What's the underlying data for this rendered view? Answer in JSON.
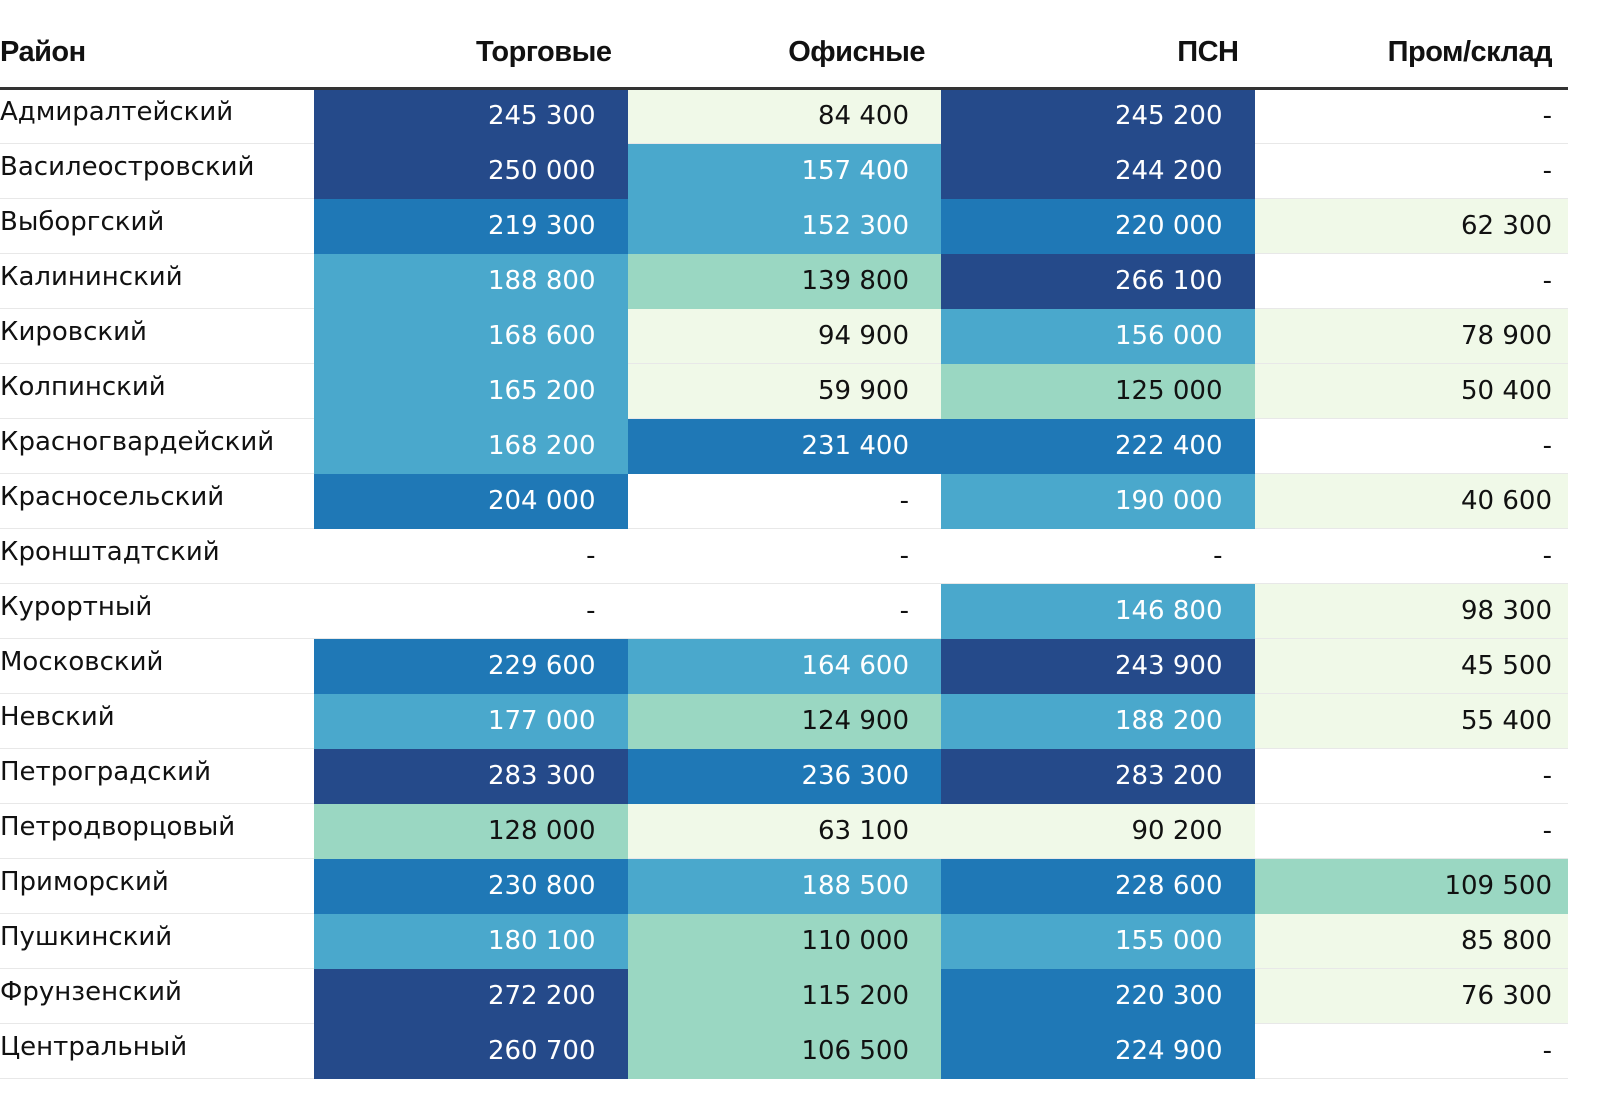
{
  "chart_data": {
    "type": "table",
    "columns": [
      "Район",
      "Торговые",
      "Офисные",
      "ПСН",
      "Пром/склад"
    ],
    "rows": [
      {
        "name": "Адмиралтейский",
        "values": [
          "245 300",
          "84 400",
          "245 200",
          "-"
        ]
      },
      {
        "name": "Василеостровский",
        "values": [
          "250 000",
          "157 400",
          "244 200",
          "-"
        ]
      },
      {
        "name": "Выборгский",
        "values": [
          "219 300",
          "152 300",
          "220 000",
          "62 300"
        ]
      },
      {
        "name": "Калининский",
        "values": [
          "188 800",
          "139 800",
          "266 100",
          "-"
        ]
      },
      {
        "name": "Кировский",
        "values": [
          "168 600",
          "94 900",
          "156 000",
          "78 900"
        ]
      },
      {
        "name": "Колпинский",
        "values": [
          "165 200",
          "59 900",
          "125 000",
          "50 400"
        ]
      },
      {
        "name": "Красногвардейский",
        "values": [
          "168 200",
          "231 400",
          "222 400",
          "-"
        ]
      },
      {
        "name": "Красносельский",
        "values": [
          "204 000",
          "-",
          "190 000",
          "40 600"
        ]
      },
      {
        "name": "Кронштадтский",
        "values": [
          "-",
          "-",
          "-",
          "-"
        ]
      },
      {
        "name": "Курортный",
        "values": [
          "-",
          "-",
          "146 800",
          "98 300"
        ]
      },
      {
        "name": "Московский",
        "values": [
          "229 600",
          "164 600",
          "243 900",
          "45 500"
        ]
      },
      {
        "name": "Невский",
        "values": [
          "177 000",
          "124 900",
          "188 200",
          "55 400"
        ]
      },
      {
        "name": "Петроградский",
        "values": [
          "283 300",
          "236 300",
          "283 200",
          "-"
        ]
      },
      {
        "name": "Петродворцовый",
        "values": [
          "128 000",
          "63 100",
          "90 200",
          "-"
        ]
      },
      {
        "name": "Приморский",
        "values": [
          "230 800",
          "188 500",
          "228 600",
          "109 500"
        ]
      },
      {
        "name": "Пушкинский",
        "values": [
          "180 100",
          "110 000",
          "155 000",
          "85 800"
        ]
      },
      {
        "name": "Фрунзенский",
        "values": [
          "272 200",
          "115 200",
          "220 300",
          "76 300"
        ]
      },
      {
        "name": "Центральный",
        "values": [
          "260 700",
          "106 500",
          "224 900",
          "-"
        ]
      }
    ],
    "color_scale": {
      "thresholds": [
        0,
        100000,
        140000,
        200000,
        240000
      ],
      "colors": [
        "#f0f9e8",
        "#9ad7c2",
        "#4aa8cc",
        "#1f78b6",
        "#254a8a"
      ],
      "empty_color": "#ffffff",
      "dark_text_color": "#111111",
      "light_text_color": "#ffffff"
    }
  }
}
